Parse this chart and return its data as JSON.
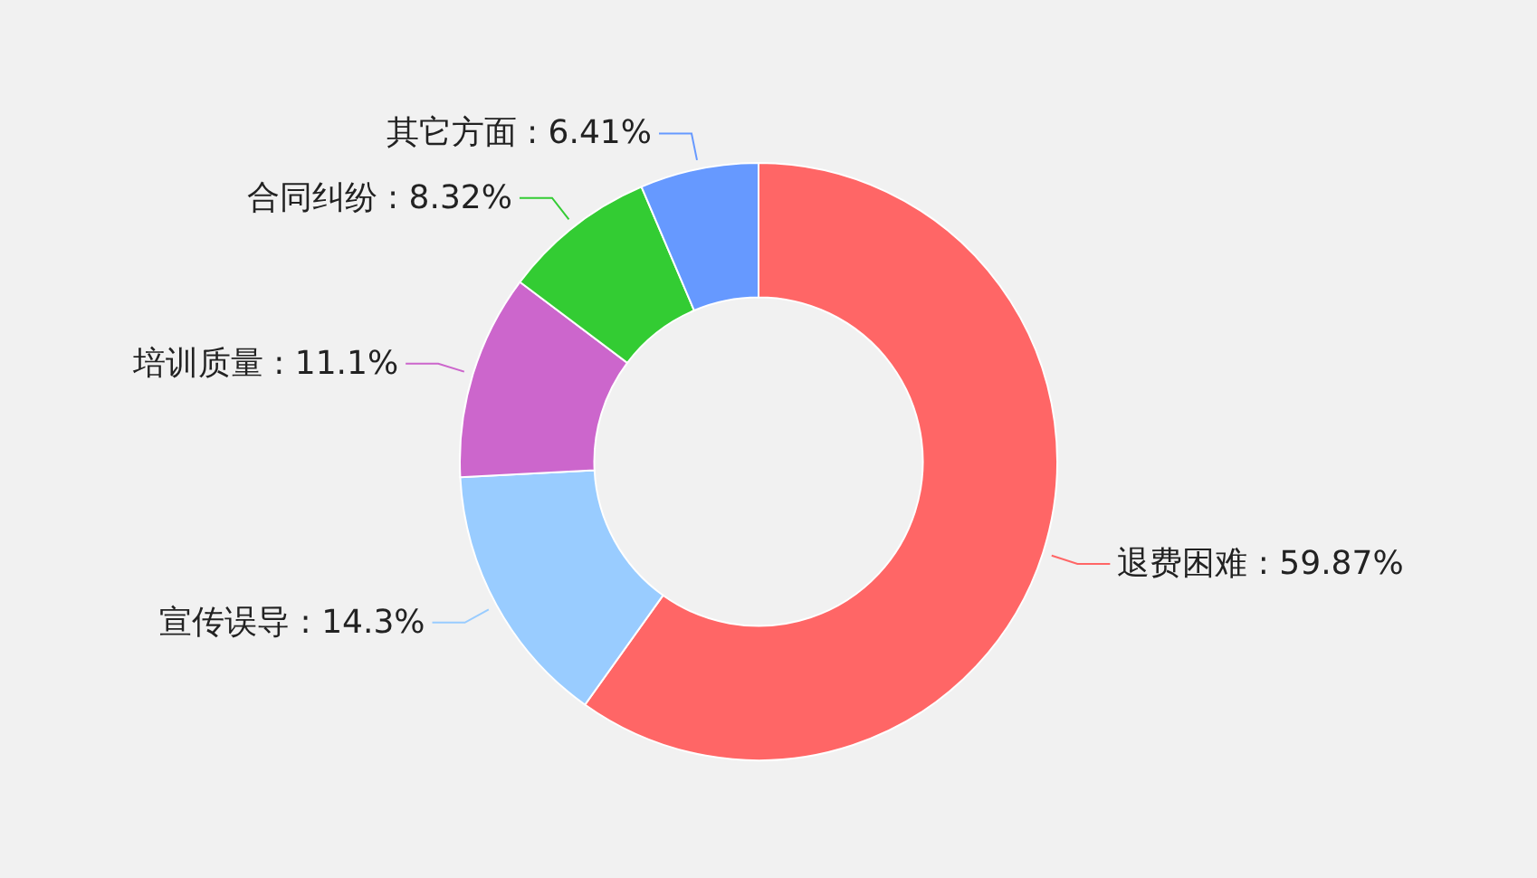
{
  "chart_data": {
    "type": "donut",
    "categories": [
      "退费困难",
      "宣传误导",
      "培训质量",
      "合同纠纷",
      "其它方面"
    ],
    "values": [
      59.87,
      14.3,
      11.1,
      8.32,
      6.41
    ],
    "colors": [
      "#ff6666",
      "#99ccff",
      "#cc66cc",
      "#33cc33",
      "#6699ff"
    ],
    "value_labels": [
      ": 59.87%",
      ": 14.3%",
      ": 11.1%",
      ": 8.32%",
      ": 6.41%"
    ],
    "legend": false
  }
}
